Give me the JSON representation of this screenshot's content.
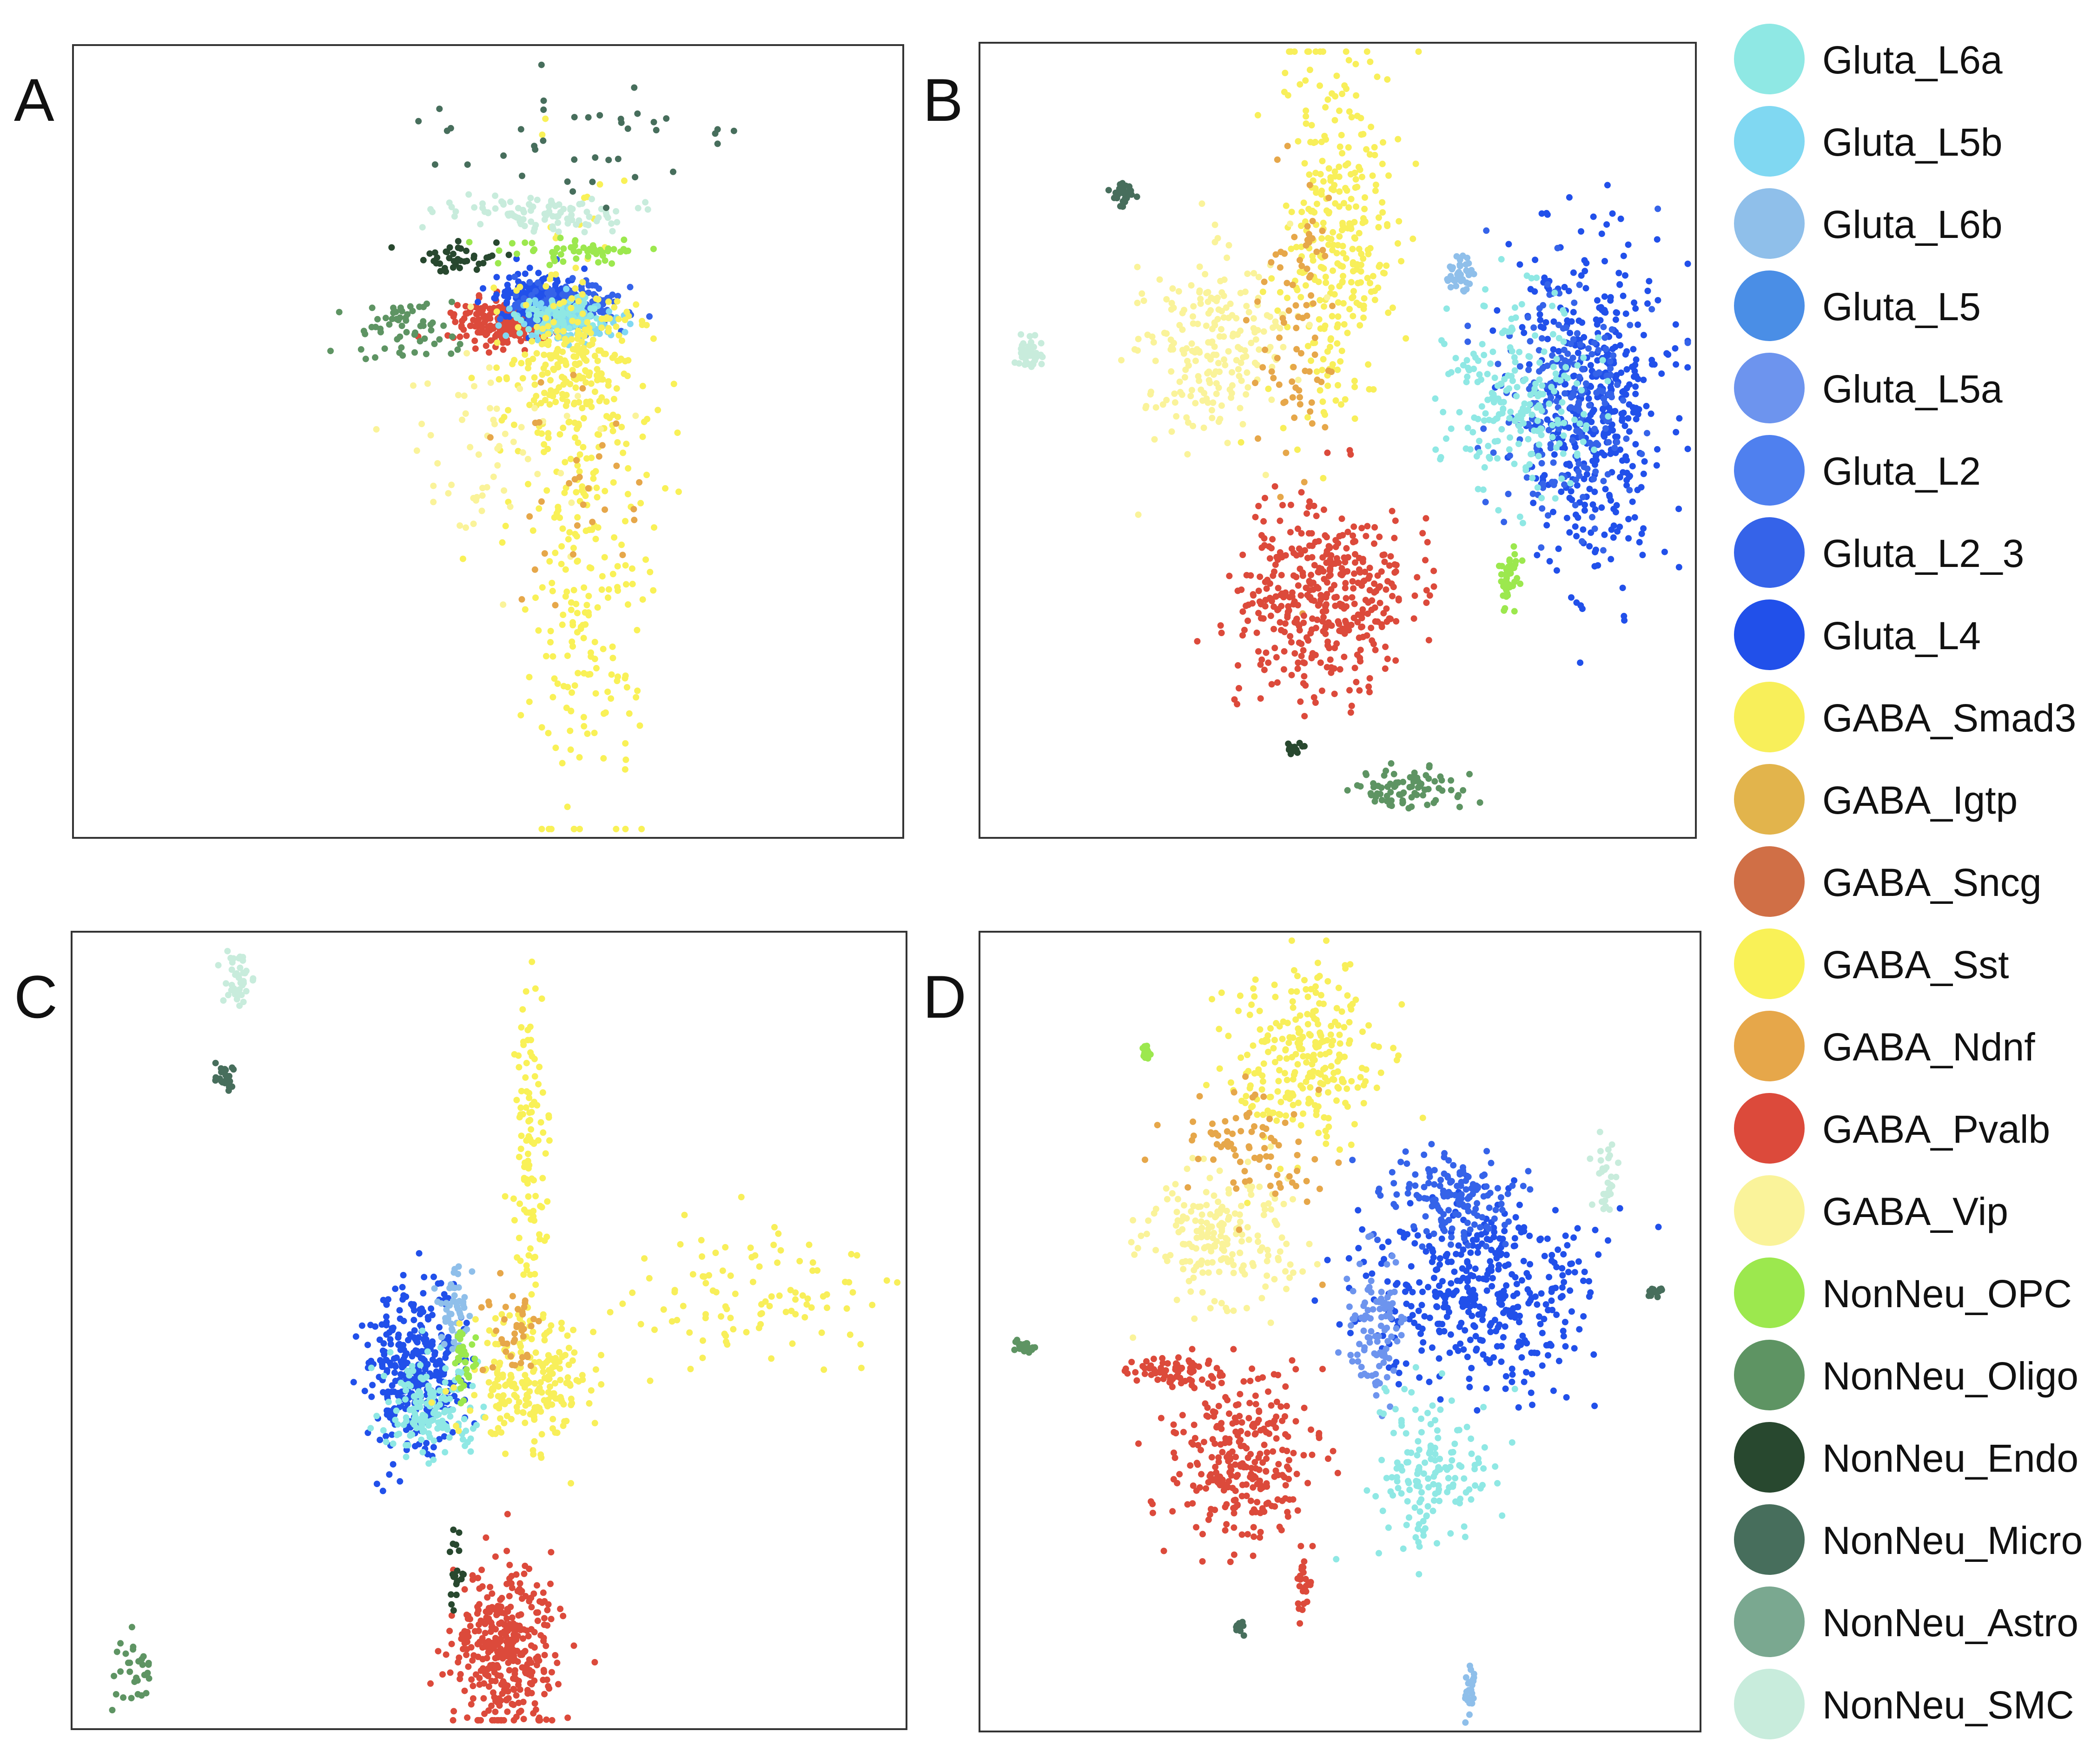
{
  "chart_data": {
    "type": "scatter",
    "panels": [
      "A",
      "B",
      "C",
      "D"
    ],
    "legend_placement": "right",
    "grid": false,
    "axes_ticks": false,
    "categories": [
      {
        "name": "Gluta_L6a",
        "color": "#8fe8e4"
      },
      {
        "name": "Gluta_L5b",
        "color": "#80d8f2"
      },
      {
        "name": "Gluta_L6b",
        "color": "#8fbfea"
      },
      {
        "name": "Gluta_L5",
        "color": "#4a8ee6"
      },
      {
        "name": "Gluta_L5a",
        "color": "#6d94ee"
      },
      {
        "name": "Gluta_L2",
        "color": "#4f80ef"
      },
      {
        "name": "Gluta_L2_3",
        "color": "#3563e9"
      },
      {
        "name": "Gluta_L4",
        "color": "#2150ea"
      },
      {
        "name": "GABA_Smad3",
        "color": "#f8ef5a"
      },
      {
        "name": "GABA_Igtp",
        "color": "#e2b44c"
      },
      {
        "name": "GABA_Sncg",
        "color": "#d06f46"
      },
      {
        "name": "GABA_Sst",
        "color": "#f9f157"
      },
      {
        "name": "GABA_Ndnf",
        "color": "#e6a74a"
      },
      {
        "name": "GABA_Pvalb",
        "color": "#dc4a3b"
      },
      {
        "name": "GABA_Vip",
        "color": "#faf39a"
      },
      {
        "name": "NonNeu_OPC",
        "color": "#9ce84e"
      },
      {
        "name": "NonNeu_Oligo",
        "color": "#5e9463"
      },
      {
        "name": "NonNeu_Endo",
        "color": "#28482f"
      },
      {
        "name": "NonNeu_Micro",
        "color": "#476e5c"
      },
      {
        "name": "NonNeu_Astro",
        "color": "#7aa890"
      },
      {
        "name": "NonNeu_SMC",
        "color": "#c8ecdc"
      }
    ],
    "clusters": {
      "A": [
        {
          "cat": "GABA_Pvalb",
          "x": 0.52,
          "y": 0.35,
          "sx": 0.03,
          "sy": 0.015,
          "n": 220
        },
        {
          "cat": "Gluta_L4",
          "x": 0.56,
          "y": 0.32,
          "sx": 0.025,
          "sy": 0.015,
          "n": 220
        },
        {
          "cat": "Gluta_L2_3",
          "x": 0.6,
          "y": 0.33,
          "sx": 0.03,
          "sy": 0.015,
          "n": 180
        },
        {
          "cat": "Gluta_L5b",
          "x": 0.6,
          "y": 0.35,
          "sx": 0.03,
          "sy": 0.015,
          "n": 120
        },
        {
          "cat": "Gluta_L6a",
          "x": 0.58,
          "y": 0.34,
          "sx": 0.025,
          "sy": 0.012,
          "n": 80
        },
        {
          "cat": "GABA_Smad3",
          "x": 0.6,
          "y": 0.4,
          "sx": 0.04,
          "sy": 0.05,
          "n": 220
        },
        {
          "cat": "GABA_Sst",
          "x": 0.62,
          "y": 0.62,
          "sx": 0.04,
          "sy": 0.18,
          "n": 260
        },
        {
          "cat": "GABA_Vip",
          "x": 0.5,
          "y": 0.5,
          "sx": 0.06,
          "sy": 0.08,
          "n": 60
        },
        {
          "cat": "GABA_Ndnf",
          "x": 0.6,
          "y": 0.55,
          "sx": 0.04,
          "sy": 0.06,
          "n": 30
        },
        {
          "cat": "NonNeu_Oligo",
          "x": 0.4,
          "y": 0.36,
          "sx": 0.03,
          "sy": 0.02,
          "n": 60
        },
        {
          "cat": "NonNeu_Endo",
          "x": 0.46,
          "y": 0.27,
          "sx": 0.03,
          "sy": 0.01,
          "n": 40
        },
        {
          "cat": "NonNeu_SMC",
          "x": 0.55,
          "y": 0.21,
          "sx": 0.05,
          "sy": 0.012,
          "n": 100
        },
        {
          "cat": "NonNeu_OPC",
          "x": 0.61,
          "y": 0.26,
          "sx": 0.04,
          "sy": 0.008,
          "n": 50
        },
        {
          "cat": "NonNeu_Micro",
          "x": 0.6,
          "y": 0.12,
          "sx": 0.1,
          "sy": 0.04,
          "n": 40
        }
      ],
      "B": [
        {
          "cat": "GABA_Smad3",
          "x": 0.5,
          "y": 0.25,
          "sx": 0.04,
          "sy": 0.12,
          "n": 320
        },
        {
          "cat": "GABA_Vip",
          "x": 0.32,
          "y": 0.38,
          "sx": 0.05,
          "sy": 0.06,
          "n": 220
        },
        {
          "cat": "GABA_Ndnf",
          "x": 0.44,
          "y": 0.36,
          "sx": 0.03,
          "sy": 0.1,
          "n": 80
        },
        {
          "cat": "GABA_Pvalb",
          "x": 0.48,
          "y": 0.7,
          "sx": 0.06,
          "sy": 0.06,
          "n": 420
        },
        {
          "cat": "Gluta_L4",
          "x": 0.86,
          "y": 0.45,
          "sx": 0.05,
          "sy": 0.1,
          "n": 450
        },
        {
          "cat": "Gluta_L2_3",
          "x": 0.82,
          "y": 0.45,
          "sx": 0.05,
          "sy": 0.08,
          "n": 200
        },
        {
          "cat": "Gluta_L6a",
          "x": 0.75,
          "y": 0.44,
          "sx": 0.05,
          "sy": 0.06,
          "n": 220
        },
        {
          "cat": "Gluta_L6b",
          "x": 0.67,
          "y": 0.29,
          "sx": 0.01,
          "sy": 0.01,
          "n": 40
        },
        {
          "cat": "NonNeu_OPC",
          "x": 0.74,
          "y": 0.68,
          "sx": 0.008,
          "sy": 0.02,
          "n": 40
        },
        {
          "cat": "NonNeu_Micro",
          "x": 0.2,
          "y": 0.19,
          "sx": 0.008,
          "sy": 0.008,
          "n": 30
        },
        {
          "cat": "NonNeu_SMC",
          "x": 0.07,
          "y": 0.39,
          "sx": 0.01,
          "sy": 0.01,
          "n": 40
        },
        {
          "cat": "NonNeu_Oligo",
          "x": 0.6,
          "y": 0.94,
          "sx": 0.04,
          "sy": 0.012,
          "n": 80
        },
        {
          "cat": "NonNeu_Endo",
          "x": 0.44,
          "y": 0.89,
          "sx": 0.006,
          "sy": 0.005,
          "n": 15
        }
      ],
      "C": [
        {
          "cat": "Gluta_L4",
          "x": 0.41,
          "y": 0.55,
          "sx": 0.03,
          "sy": 0.05,
          "n": 350
        },
        {
          "cat": "Gluta_L6a",
          "x": 0.43,
          "y": 0.6,
          "sx": 0.03,
          "sy": 0.03,
          "n": 150
        },
        {
          "cat": "Gluta_L6b",
          "x": 0.46,
          "y": 0.48,
          "sx": 0.01,
          "sy": 0.03,
          "n": 50
        },
        {
          "cat": "GABA_Pvalb",
          "x": 0.52,
          "y": 0.9,
          "sx": 0.03,
          "sy": 0.05,
          "n": 380
        },
        {
          "cat": "GABA_Smad3",
          "x": 0.55,
          "y": 0.56,
          "sx": 0.04,
          "sy": 0.04,
          "n": 220
        },
        {
          "cat": "GABA_Sst",
          "x": 0.55,
          "y": 0.3,
          "sx": 0.01,
          "sy": 0.12,
          "n": 120
        },
        {
          "cat": "GABA_Smad3",
          "x": 0.83,
          "y": 0.45,
          "sx": 0.08,
          "sy": 0.04,
          "n": 100
        },
        {
          "cat": "GABA_Ndnf",
          "x": 0.53,
          "y": 0.5,
          "sx": 0.02,
          "sy": 0.03,
          "n": 40
        },
        {
          "cat": "NonNeu_OPC",
          "x": 0.47,
          "y": 0.54,
          "sx": 0.008,
          "sy": 0.02,
          "n": 30
        },
        {
          "cat": "NonNeu_SMC",
          "x": 0.2,
          "y": 0.06,
          "sx": 0.008,
          "sy": 0.02,
          "n": 40
        },
        {
          "cat": "NonNeu_Micro",
          "x": 0.18,
          "y": 0.18,
          "sx": 0.006,
          "sy": 0.008,
          "n": 20
        },
        {
          "cat": "NonNeu_Oligo",
          "x": 0.07,
          "y": 0.93,
          "sx": 0.02,
          "sy": 0.02,
          "n": 30
        },
        {
          "cat": "NonNeu_Endo",
          "x": 0.46,
          "y": 0.8,
          "sx": 0.005,
          "sy": 0.03,
          "n": 20
        }
      ],
      "D": [
        {
          "cat": "GABA_Smad3",
          "x": 0.45,
          "y": 0.16,
          "sx": 0.05,
          "sy": 0.06,
          "n": 260
        },
        {
          "cat": "GABA_Vip",
          "x": 0.33,
          "y": 0.38,
          "sx": 0.05,
          "sy": 0.04,
          "n": 200
        },
        {
          "cat": "GABA_Ndnf",
          "x": 0.38,
          "y": 0.27,
          "sx": 0.05,
          "sy": 0.04,
          "n": 80
        },
        {
          "cat": "GABA_Pvalb",
          "x": 0.36,
          "y": 0.66,
          "sx": 0.05,
          "sy": 0.05,
          "n": 280
        },
        {
          "cat": "GABA_Pvalb",
          "x": 0.27,
          "y": 0.55,
          "sx": 0.03,
          "sy": 0.01,
          "n": 70
        },
        {
          "cat": "GABA_Pvalb",
          "x": 0.45,
          "y": 0.82,
          "sx": 0.005,
          "sy": 0.02,
          "n": 25
        },
        {
          "cat": "Gluta_L4",
          "x": 0.7,
          "y": 0.45,
          "sx": 0.08,
          "sy": 0.06,
          "n": 420
        },
        {
          "cat": "Gluta_L2_3",
          "x": 0.65,
          "y": 0.33,
          "sx": 0.04,
          "sy": 0.03,
          "n": 150
        },
        {
          "cat": "Gluta_L5a",
          "x": 0.55,
          "y": 0.5,
          "sx": 0.02,
          "sy": 0.05,
          "n": 100
        },
        {
          "cat": "Gluta_L6a",
          "x": 0.63,
          "y": 0.68,
          "sx": 0.04,
          "sy": 0.05,
          "n": 160
        },
        {
          "cat": "Gluta_L6b",
          "x": 0.68,
          "y": 0.95,
          "sx": 0.004,
          "sy": 0.02,
          "n": 25
        },
        {
          "cat": "NonNeu_OPC",
          "x": 0.23,
          "y": 0.15,
          "sx": 0.005,
          "sy": 0.005,
          "n": 20
        },
        {
          "cat": "NonNeu_Oligo",
          "x": 0.06,
          "y": 0.52,
          "sx": 0.006,
          "sy": 0.004,
          "n": 25
        },
        {
          "cat": "NonNeu_SMC",
          "x": 0.87,
          "y": 0.31,
          "sx": 0.008,
          "sy": 0.02,
          "n": 30
        },
        {
          "cat": "NonNeu_Micro",
          "x": 0.94,
          "y": 0.45,
          "sx": 0.006,
          "sy": 0.004,
          "n": 12
        },
        {
          "cat": "NonNeu_Micro",
          "x": 0.36,
          "y": 0.87,
          "sx": 0.004,
          "sy": 0.004,
          "n": 10
        }
      ]
    }
  }
}
